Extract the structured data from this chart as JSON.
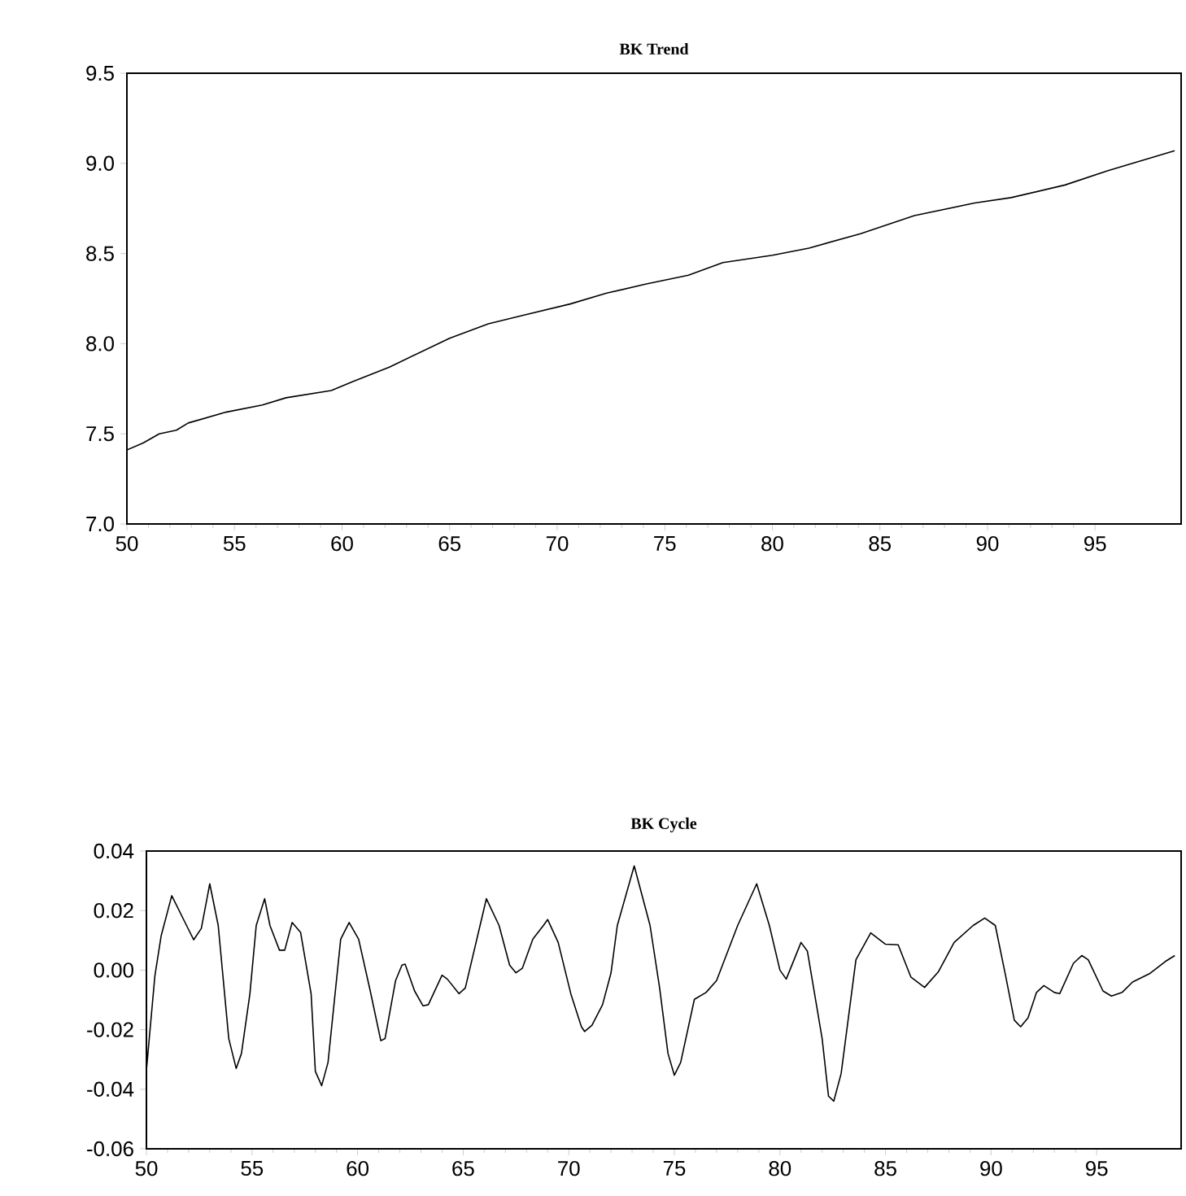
{
  "chart_data": [
    {
      "type": "line",
      "title": "BK Trend",
      "xlim": [
        50,
        99
      ],
      "xticks": [
        50,
        55,
        60,
        65,
        70,
        75,
        80,
        85,
        90,
        95
      ],
      "ylim": [
        7.0,
        9.5
      ],
      "yticks": [
        {
          "value": 7.0,
          "label": "7.0"
        },
        {
          "value": 7.5,
          "label": "7.5"
        },
        {
          "value": 8.0,
          "label": "8.0"
        },
        {
          "value": 8.5,
          "label": "8.5"
        },
        {
          "value": 9.0,
          "label": "9.0"
        },
        {
          "value": 9.5,
          "label": "9.5"
        }
      ],
      "grid": false,
      "marker": "none",
      "line_style": "solid",
      "x": [
        50,
        50.77,
        51.5,
        52.3,
        52.85,
        54.6,
        56.3,
        57.4,
        59.5,
        60.5,
        62.2,
        63.6,
        65.0,
        66.8,
        68.5,
        70.6,
        72.3,
        74.1,
        76.1,
        77.7,
        80.0,
        81.7,
        84.1,
        86.6,
        89.4,
        91.1,
        93.6,
        95.6,
        98.7
      ],
      "series": [
        {
          "color": "#000000",
          "values": [
            7.41,
            7.45,
            7.5,
            7.52,
            7.56,
            7.62,
            7.66,
            7.7,
            7.74,
            7.79,
            7.87,
            7.95,
            8.03,
            8.11,
            8.16,
            8.22,
            8.28,
            8.33,
            8.38,
            8.45,
            8.49,
            8.53,
            8.61,
            8.71,
            8.78,
            8.81,
            8.88,
            8.96,
            9.07
          ]
        }
      ]
    },
    {
      "type": "line",
      "title": "BK Cycle",
      "xlim": [
        50,
        99
      ],
      "xticks": [
        50,
        55,
        60,
        65,
        70,
        75,
        80,
        85,
        90,
        95
      ],
      "ylim": [
        -0.06,
        0.04
      ],
      "yticks": [
        {
          "value": -0.06,
          "label": "-0.06"
        },
        {
          "value": -0.04,
          "label": "-0.04"
        },
        {
          "value": -0.02,
          "label": "-0.02"
        },
        {
          "value": 0.0,
          "label": "0.00"
        },
        {
          "value": 0.02,
          "label": "0.02"
        },
        {
          "value": 0.04,
          "label": "0.04"
        }
      ],
      "grid": false,
      "marker": "none",
      "line_style": "solid",
      "x": [
        50.0,
        50.4,
        50.7,
        51.2,
        51.9,
        52.24,
        52.6,
        53.0,
        53.4,
        53.9,
        54.25,
        54.5,
        54.9,
        55.2,
        55.6,
        55.85,
        56.3,
        56.55,
        56.9,
        57.3,
        57.8,
        58.0,
        58.3,
        58.6,
        59.2,
        59.6,
        60.05,
        60.6,
        61.1,
        61.3,
        61.8,
        62.1,
        62.25,
        62.7,
        63.1,
        63.35,
        64.0,
        64.25,
        64.8,
        65.1,
        65.8,
        66.1,
        66.7,
        67.2,
        67.5,
        67.8,
        68.3,
        68.8,
        69.0,
        69.5,
        70.1,
        70.6,
        70.75,
        71.1,
        71.6,
        72.0,
        72.3,
        73.1,
        73.85,
        74.3,
        74.7,
        75.0,
        75.3,
        75.95,
        76.5,
        77.0,
        78.0,
        78.9,
        79.5,
        80.0,
        80.3,
        81.0,
        81.3,
        82.0,
        82.3,
        82.55,
        82.9,
        83.6,
        84.3,
        85.0,
        85.6,
        86.2,
        86.85,
        87.5,
        88.25,
        89.15,
        89.7,
        90.2,
        90.7,
        91.1,
        91.4,
        91.75,
        92.15,
        92.5,
        93.0,
        93.25,
        93.9,
        94.3,
        94.6,
        95.3,
        95.7,
        96.2,
        96.7,
        97.5,
        98.25,
        98.7
      ],
      "series": [
        {
          "color": "#000000",
          "values": [
            -0.0336,
            -0.002,
            0.0116,
            0.025,
            0.015,
            0.0102,
            0.014,
            0.029,
            0.015,
            -0.023,
            -0.033,
            -0.028,
            -0.008,
            0.015,
            0.024,
            0.015,
            0.0067,
            0.0067,
            0.016,
            0.0127,
            -0.008,
            -0.034,
            -0.0388,
            -0.031,
            0.0104,
            0.016,
            0.0104,
            -0.007,
            -0.0237,
            -0.023,
            -0.0035,
            0.0017,
            0.002,
            -0.007,
            -0.012,
            -0.0116,
            -0.0017,
            -0.003,
            -0.0079,
            -0.006,
            0.015,
            0.024,
            0.015,
            0.0017,
            -0.0009,
            0.0006,
            0.0104,
            0.015,
            0.017,
            0.0093,
            -0.008,
            -0.019,
            -0.0206,
            -0.0185,
            -0.0116,
            -0.001,
            0.015,
            0.035,
            0.015,
            -0.0058,
            -0.028,
            -0.0353,
            -0.031,
            -0.0098,
            -0.0075,
            -0.0035,
            0.015,
            0.029,
            0.015,
            0.0,
            -0.003,
            0.0093,
            0.0064,
            -0.023,
            -0.0423,
            -0.044,
            -0.0347,
            0.0035,
            0.0125,
            0.0087,
            0.0085,
            -0.0023,
            -0.0058,
            -0.0006,
            0.0093,
            0.015,
            0.0175,
            0.015,
            -0.0023,
            -0.0168,
            -0.019,
            -0.016,
            -0.0075,
            -0.0052,
            -0.0075,
            -0.0079,
            0.0023,
            0.0049,
            0.0035,
            -0.007,
            -0.0087,
            -0.0075,
            -0.004,
            -0.0012,
            0.0029,
            0.0049
          ]
        }
      ]
    }
  ]
}
